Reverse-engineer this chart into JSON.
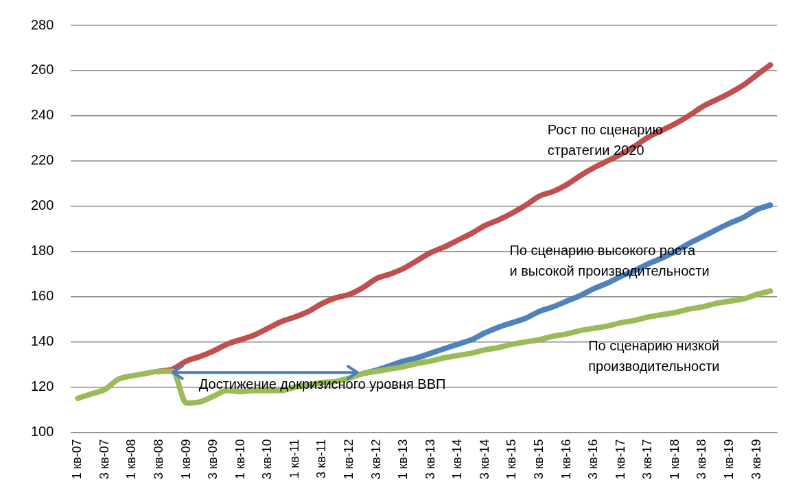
{
  "chart_data": {
    "type": "line",
    "categories": [
      "1 кв-07",
      null,
      "3 кв-07",
      null,
      "1 кв-08",
      null,
      "3 кв-08",
      null,
      "1 кв-09",
      null,
      "3 кв-09",
      null,
      "1 кв-10",
      null,
      "3 кв-10",
      null,
      "1 кв-11",
      null,
      "3 кв-11",
      null,
      "1 кв-12",
      null,
      "3 кв-12",
      null,
      "1 кв-13",
      null,
      "3 кв-13",
      null,
      "1 кв-14",
      null,
      "3 кв-14",
      null,
      "1 кв-15",
      null,
      "3 кв-15",
      null,
      "1 кв-16",
      null,
      "3 кв-16",
      null,
      "1 кв-17",
      null,
      "3 кв-17",
      null,
      "1 кв-18",
      null,
      "3 кв-18",
      null,
      "1 кв-19",
      null,
      "3 кв-19",
      null
    ],
    "series": [
      {
        "name": "Рост по сценарию стратегии 2020",
        "color": "#c0504d",
        "values": [
          null,
          null,
          null,
          null,
          null,
          null,
          127,
          128,
          131.5,
          133.5,
          136,
          139,
          141,
          143,
          146,
          149,
          151,
          153.5,
          157,
          159.5,
          161,
          164,
          168,
          170,
          172.5,
          176,
          179.5,
          182,
          185,
          188,
          191.5,
          194,
          197,
          200.5,
          204.5,
          206.5,
          209.5,
          213.5,
          217,
          220,
          223,
          226.5,
          230.5,
          233.5,
          236.5,
          240,
          244,
          247,
          250,
          253.5,
          258,
          262.5
        ]
      },
      {
        "name": "По сценарию высокого роста и высокой производительности",
        "color": "#4f81bd",
        "values": [
          null,
          null,
          null,
          null,
          null,
          null,
          null,
          null,
          null,
          null,
          null,
          null,
          null,
          null,
          null,
          null,
          null,
          null,
          null,
          null,
          null,
          126,
          127.5,
          129.5,
          131.5,
          133,
          135,
          137,
          139,
          141,
          144,
          146.5,
          148.5,
          150.5,
          153.5,
          155.5,
          158,
          160.5,
          163.5,
          166,
          169,
          171.5,
          174.5,
          177,
          180,
          183.5,
          186.5,
          189.5,
          192.5,
          195,
          198.5,
          200.5
        ]
      },
      {
        "name": "По сценарию низкой производительности",
        "color": "#9bbb59",
        "values": [
          115,
          117,
          119,
          123.5,
          125,
          126,
          127,
          127,
          113,
          113.5,
          116,
          118.5,
          118,
          118.5,
          118.5,
          118.5,
          120,
          121,
          122,
          122.5,
          124,
          126,
          127,
          128,
          129,
          130.5,
          131.5,
          133,
          134,
          135,
          136.5,
          137.5,
          139,
          140,
          141,
          142.5,
          143.5,
          145,
          146,
          147,
          148.5,
          149.5,
          151,
          152,
          153,
          154.5,
          155.5,
          157,
          158,
          159,
          161,
          162.5
        ]
      }
    ],
    "ylim": [
      100,
      280
    ],
    "yticks": [
      100,
      120,
      140,
      160,
      180,
      200,
      220,
      240,
      260,
      280
    ],
    "grid": "y",
    "legend": false,
    "marker": "none",
    "line_style": "solid",
    "annotations": [
      {
        "text": "Достижение докризисного уровня ВВП",
        "x": "1 кв-12",
        "y": 126.5
      }
    ]
  }
}
